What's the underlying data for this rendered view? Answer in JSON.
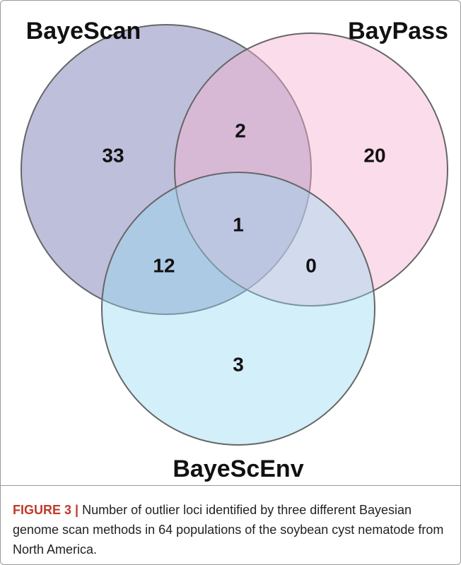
{
  "sets": [
    {
      "label": "BayeScan"
    },
    {
      "label": "BayPass"
    },
    {
      "label": "BayeScEnv"
    }
  ],
  "regions": [
    {
      "value": 33
    },
    {
      "value": 2
    },
    {
      "value": 20
    },
    {
      "value": 1
    },
    {
      "value": 12
    },
    {
      "value": 0
    },
    {
      "value": 3
    }
  ],
  "caption": {
    "label": "FIGURE 3 |",
    "text": "Number of outlier loci identified by three different Bayesian genome scan methods in 64 populations of the soybean cyst nematode from North America."
  }
}
